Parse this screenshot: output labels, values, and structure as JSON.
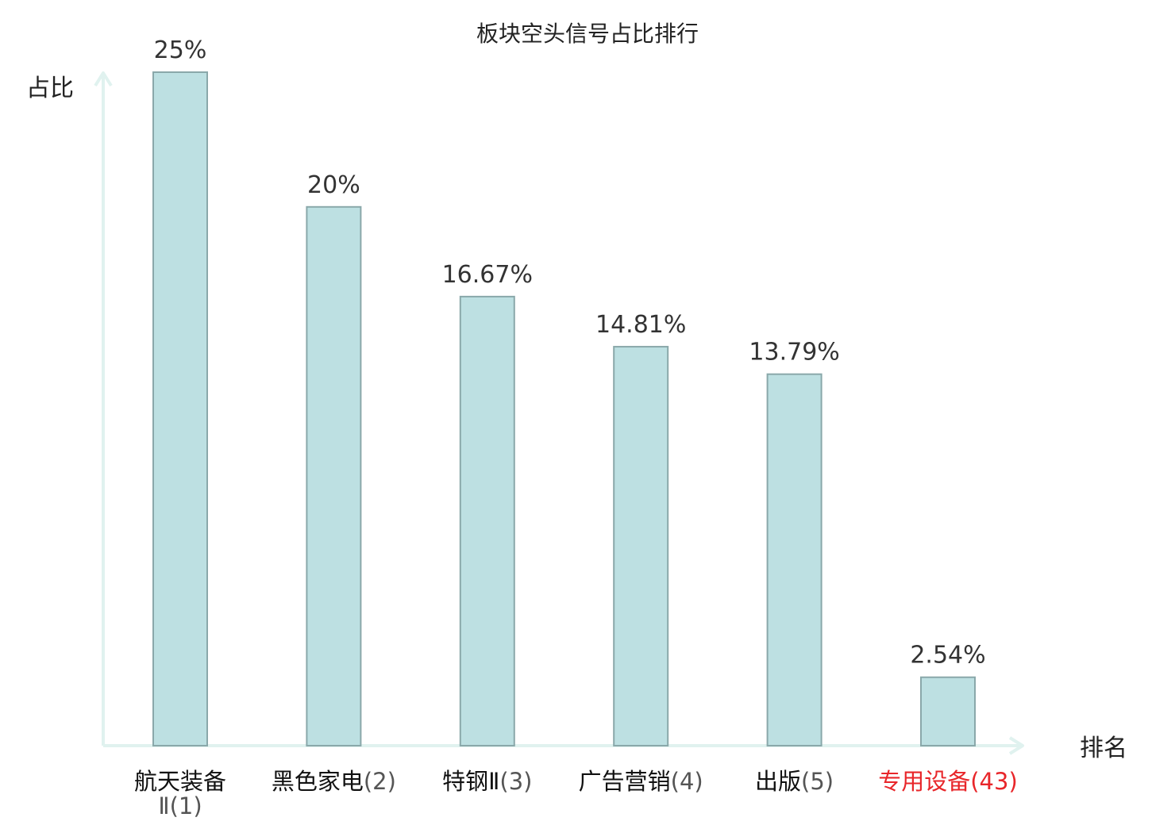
{
  "chart_data": {
    "type": "bar",
    "title": "板块空头信号占比排行",
    "ylabel": "占比",
    "xlabel": "排名",
    "ylim": [
      0,
      25
    ],
    "grid": false,
    "categories": [
      {
        "name": "航天装备Ⅱ",
        "rank": "(1)"
      },
      {
        "name": "黑色家电",
        "rank": "(2)"
      },
      {
        "name": "特钢Ⅱ",
        "rank": "(3)"
      },
      {
        "name": "广告营销",
        "rank": "(4)"
      },
      {
        "name": "出版",
        "rank": "(5)"
      },
      {
        "name": "专用设备",
        "rank": "(43)",
        "highlight": true
      }
    ],
    "values": [
      25,
      20,
      16.67,
      14.81,
      13.79,
      2.54
    ],
    "value_labels": [
      "25%",
      "20%",
      "16.67%",
      "14.81%",
      "13.79%",
      "2.54%"
    ],
    "colors": {
      "bar_fill": "#bde0e2",
      "bar_stroke": "#8aa8aa",
      "axis": "#e0f2ef",
      "label_name": "#111111",
      "label_rank": "#555555",
      "highlight": "#e8262a"
    }
  }
}
